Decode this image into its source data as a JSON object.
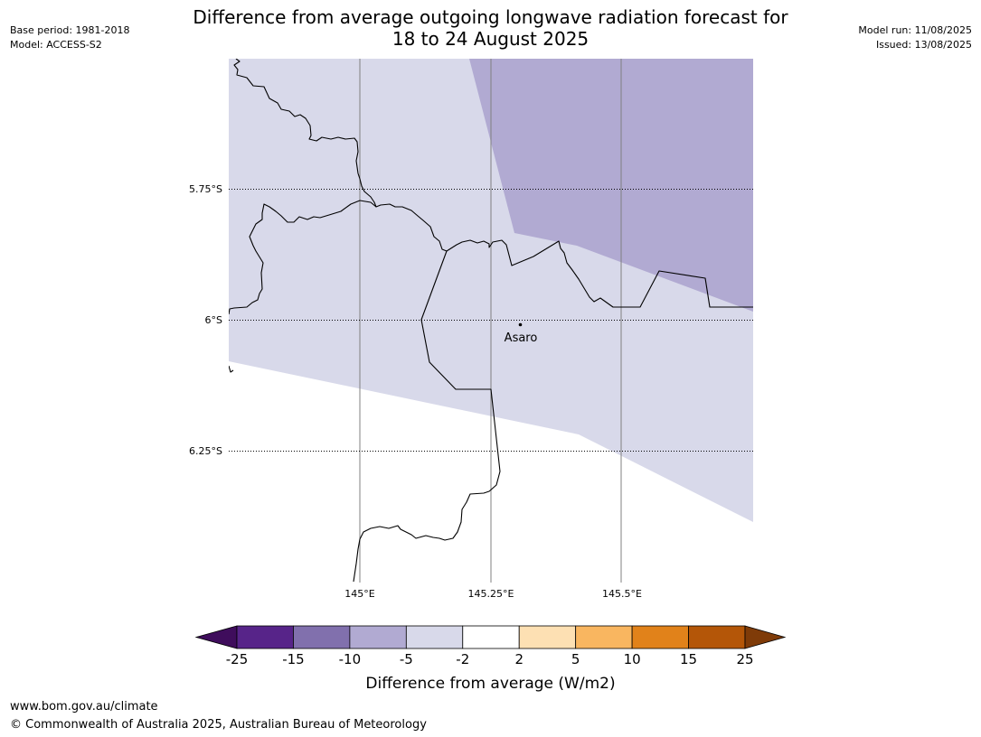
{
  "title": {
    "line1": "Difference from average outgoing longwave radiation forecast for",
    "line2": "18 to 24 August 2025"
  },
  "meta_left": {
    "base_period": "Base period: 1981-2018",
    "model": "Model: ACCESS-S2"
  },
  "meta_right": {
    "model_run": "Model run: 11/08/2025",
    "issued": "Issued: 13/08/2025"
  },
  "map": {
    "lat_labels": [
      "5.75°S",
      "6°S",
      "6.25°S"
    ],
    "lon_labels": [
      "145°E",
      "145.25°E",
      "145.5°E"
    ],
    "place": {
      "name": "Asaro"
    },
    "fill_colors": {
      "band_minus10_to_minus5": "#b1aad2",
      "band_minus5_to_minus2": "#d8d9ea"
    }
  },
  "colorbar": {
    "colors": [
      "#3f0d5c",
      "#572489",
      "#8170ad",
      "#b1aad2",
      "#d8d9ea",
      "#ffffff",
      "#fde0b3",
      "#f9b660",
      "#e1821a",
      "#b45608",
      "#7f3b08"
    ],
    "tick_labels": [
      "-25",
      "-15",
      "-10",
      "-5",
      "-2",
      "2",
      "5",
      "10",
      "15",
      "25"
    ],
    "label": "Difference from average (W/m2)"
  },
  "footer": {
    "url": "www.bom.gov.au/climate",
    "copyright": "© Commonwealth of Australia 2025, Australian Bureau of Meteorology"
  }
}
